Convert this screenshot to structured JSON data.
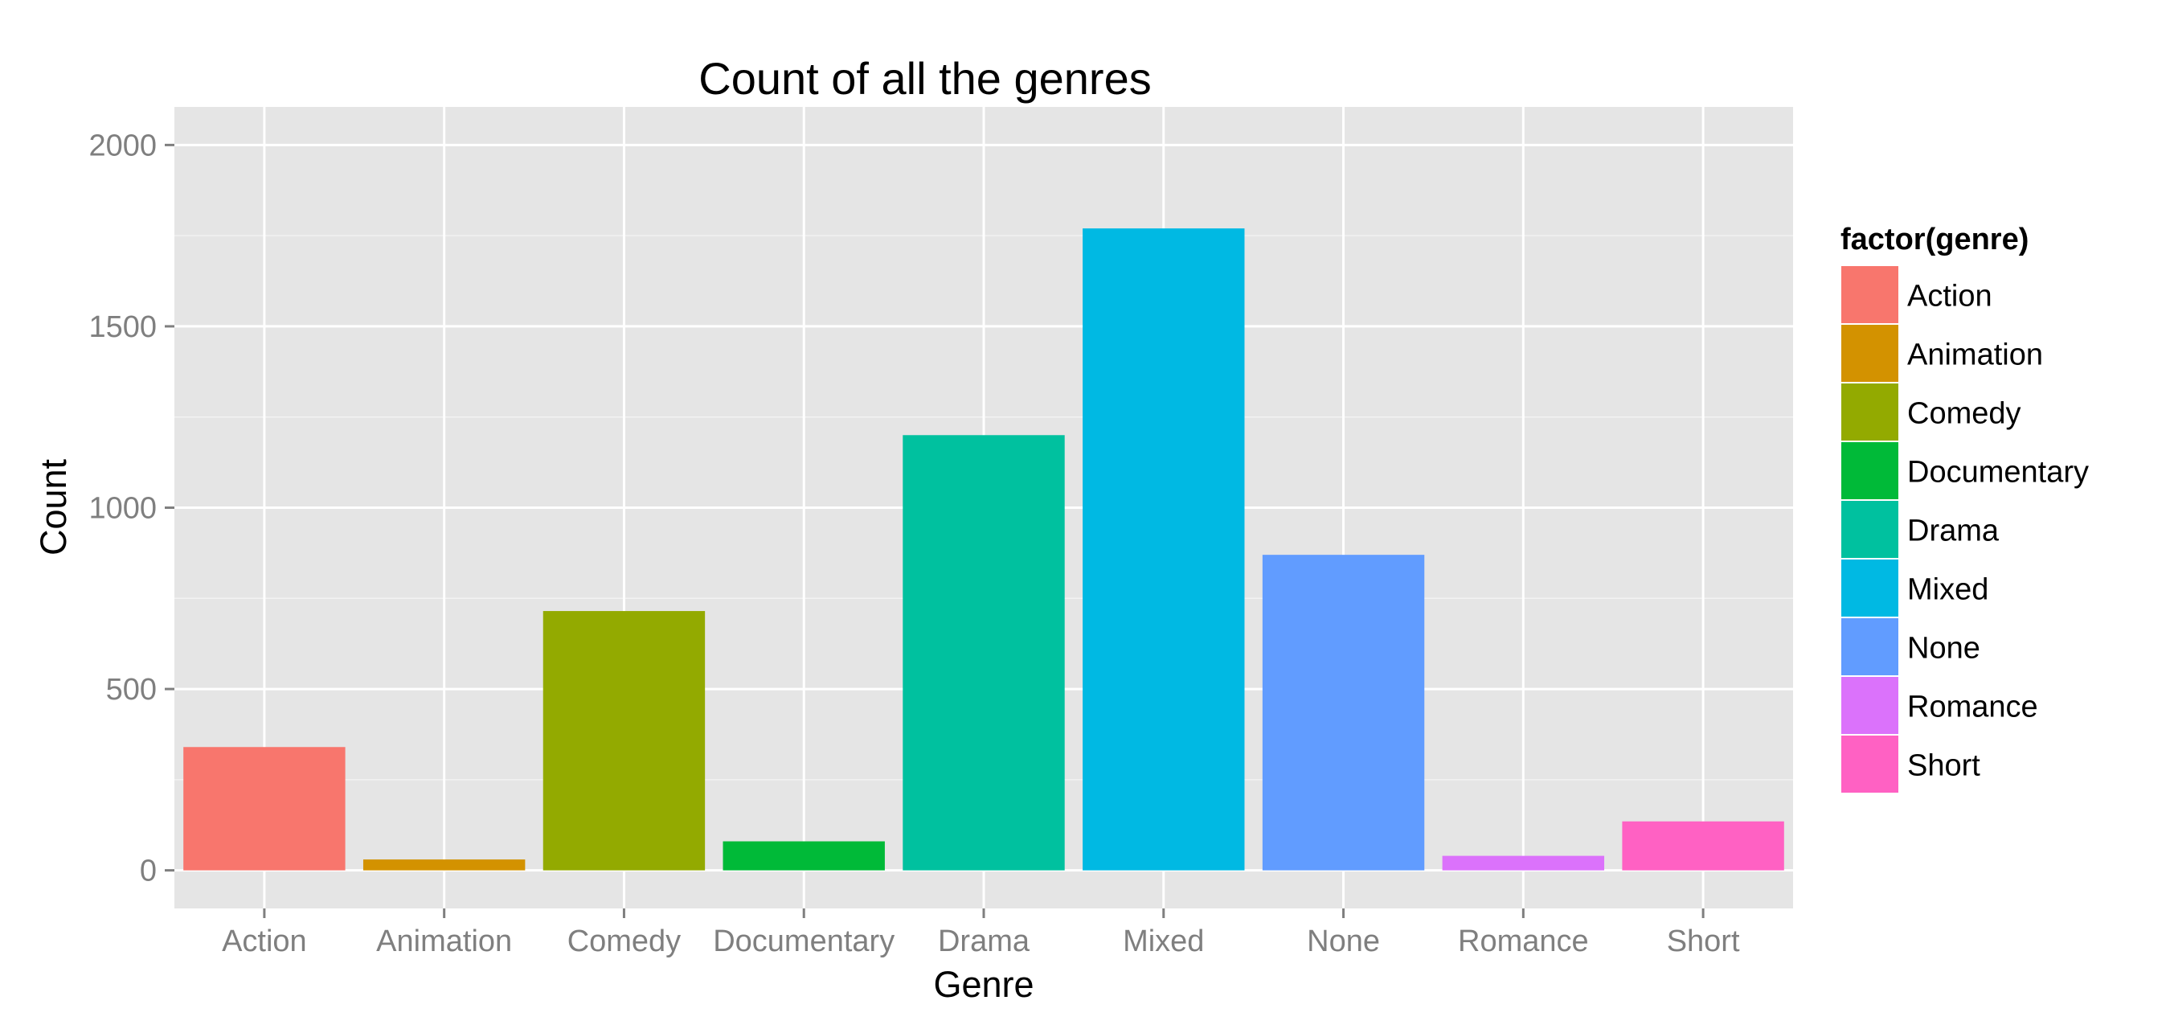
{
  "chart_data": {
    "type": "bar",
    "title": "Count of all the genres",
    "xlabel": "Genre",
    "ylabel": "Count",
    "categories": [
      "Action",
      "Animation",
      "Comedy",
      "Documentary",
      "Drama",
      "Mixed",
      "None",
      "Romance",
      "Short"
    ],
    "values": [
      340,
      30,
      715,
      80,
      1200,
      1770,
      870,
      40,
      135
    ],
    "colors": [
      "#F8766D",
      "#D39200",
      "#93AA00",
      "#00BA38",
      "#00C19F",
      "#00B9E3",
      "#619CFF",
      "#DB72FB",
      "#FF61C3"
    ],
    "ylim": [
      -105,
      2105
    ],
    "yticks": [
      0,
      500,
      1000,
      1500,
      2000
    ],
    "grid": true,
    "legend": {
      "title": "factor(genre)",
      "position": "right",
      "entries": [
        "Action",
        "Animation",
        "Comedy",
        "Documentary",
        "Drama",
        "Mixed",
        "None",
        "Romance",
        "Short"
      ]
    }
  }
}
